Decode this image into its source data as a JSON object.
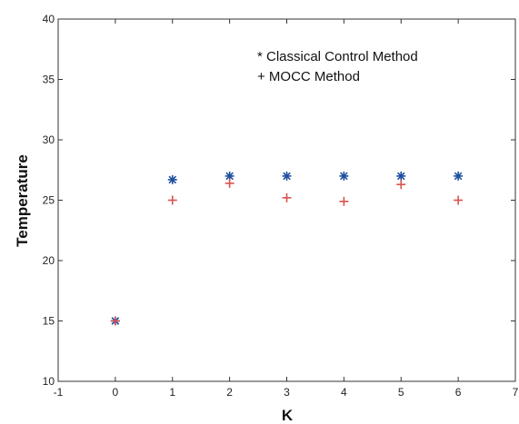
{
  "chart_data": {
    "type": "scatter",
    "xlabel": "K",
    "ylabel": "Temperature",
    "xlim": [
      -1,
      7
    ],
    "ylim": [
      10,
      40
    ],
    "xticks": [
      "-1",
      "0",
      "1",
      "2",
      "3",
      "4",
      "5",
      "6",
      "7"
    ],
    "yticks": [
      "10",
      "15",
      "20",
      "25",
      "30",
      "35",
      "40"
    ],
    "grid": false,
    "legend_placement": "top-right",
    "legend": [
      "* Classical Control Method",
      "+ MOCC Method"
    ],
    "series": [
      {
        "marker": "*",
        "color": "#1f4fa0",
        "x": [
          0,
          1,
          2,
          3,
          4,
          5,
          6
        ],
        "y": [
          15,
          26.7,
          27,
          27,
          27,
          27,
          27
        ]
      },
      {
        "marker": "+",
        "color": "#d9534f",
        "x": [
          0,
          1,
          2,
          3,
          4,
          5,
          6
        ],
        "y": [
          15,
          25,
          26.4,
          25.2,
          24.9,
          26.3,
          25
        ]
      }
    ]
  }
}
